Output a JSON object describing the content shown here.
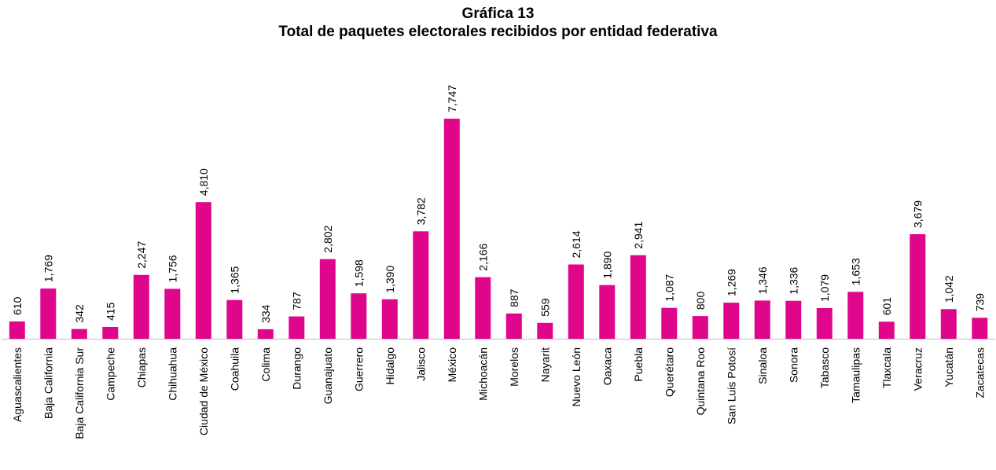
{
  "chart_data": {
    "type": "bar",
    "title": "Gráfica 13",
    "subtitle": "Total de paquetes electorales recibidos por entidad federativa",
    "xlabel": "",
    "ylabel": "",
    "categories": [
      "Aguascalientes",
      "Baja California",
      "Baja California Sur",
      "Campeche",
      "Chiapas",
      "Chihuahua",
      "Ciudad de México",
      "Coahuila",
      "Colima",
      "Durango",
      "Guanajuato",
      "Guerrero",
      "Hidalgo",
      "Jalisco",
      "México",
      "Michoacán",
      "Morelos",
      "Nayarit",
      "Nuevo León",
      "Oaxaca",
      "Puebla",
      "Querétaro",
      "Quintana Roo",
      "San Luis Potosí",
      "Sinaloa",
      "Sonora",
      "Tabasco",
      "Tamaulipas",
      "Tlaxcala",
      "Veracruz",
      "Yucatán",
      "Zacatecas"
    ],
    "values": [
      610,
      1769,
      342,
      415,
      2247,
      1756,
      4810,
      1365,
      334,
      787,
      2802,
      1598,
      1390,
      3782,
      7747,
      2166,
      887,
      559,
      2614,
      1890,
      2941,
      1087,
      800,
      1269,
      1346,
      1336,
      1079,
      1653,
      601,
      3679,
      1042,
      739
    ],
    "value_labels": [
      "610",
      "1,769",
      "342",
      "415",
      "2,247",
      "1,756",
      "4,810",
      "1,365",
      "334",
      "787",
      "2,802",
      "1,598",
      "1,390",
      "3,782",
      "7,747",
      "2,166",
      "887",
      "559",
      "2,614",
      "1,890",
      "2,941",
      "1,087",
      "800",
      "1,269",
      "1,346",
      "1,336",
      "1,079",
      "1,653",
      "601",
      "3,679",
      "1,042",
      "739"
    ],
    "ylim": [
      0,
      7747
    ],
    "grid": false,
    "legend": "none",
    "colors": {
      "bar": "#e0068c",
      "axis": "#bfbfbf"
    }
  }
}
